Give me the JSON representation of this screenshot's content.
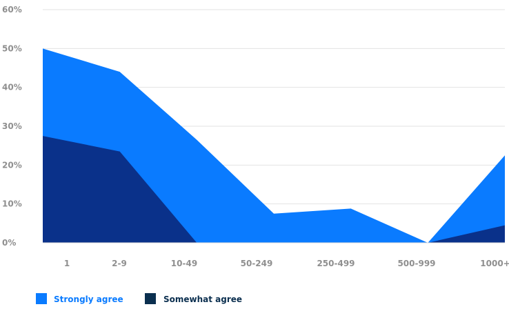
{
  "chart_data": {
    "type": "area",
    "categories": [
      "1",
      "2-9",
      "10-49",
      "50-249",
      "250-499",
      "500-999",
      "1000+"
    ],
    "series": [
      {
        "name": "Strongly agree",
        "color": "#0a7bff",
        "values": [
          50,
          44,
          26.5,
          7.5,
          8.8,
          0,
          22.5
        ]
      },
      {
        "name": "Somewhat agree",
        "color": "#0a318a",
        "values": [
          27.5,
          23.5,
          0,
          0,
          0,
          0,
          4.5
        ]
      }
    ],
    "y_ticks": [
      "0%",
      "10%",
      "20%",
      "30%",
      "40%",
      "50%",
      "60%"
    ],
    "ylim": [
      0,
      60
    ],
    "grid": true,
    "legend": {
      "position": "bottom-left",
      "items": [
        {
          "label": "Strongly agree",
          "swatch_color": "#0a7bff",
          "text_color": "#0a7bff"
        },
        {
          "label": "Somewhat agree",
          "swatch_color": "#0b2f4f",
          "text_color": "#0b2f4f"
        }
      ]
    }
  }
}
